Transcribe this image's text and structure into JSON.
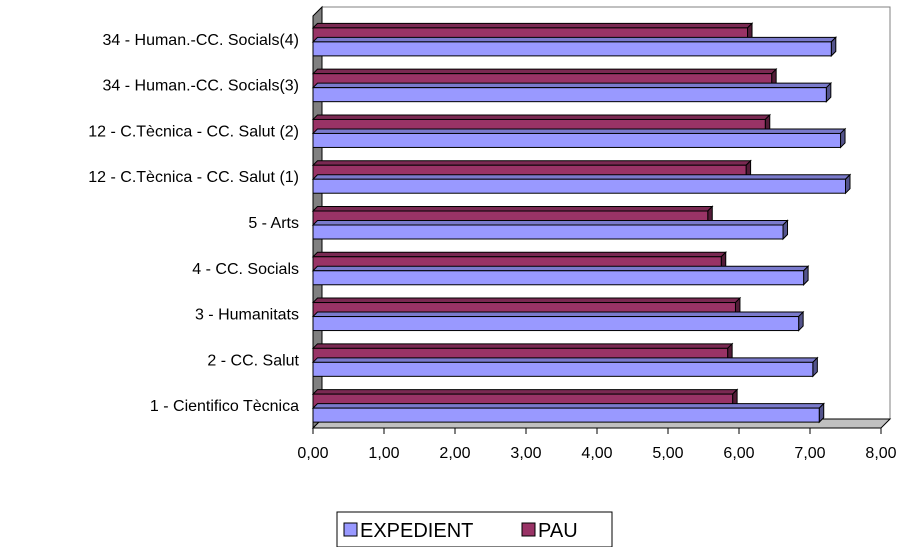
{
  "chart_data": {
    "type": "bar",
    "orientation": "horizontal",
    "style": "3d",
    "categories": [
      "1 - Cientifico Tècnica",
      "2 - CC. Salut",
      "3 - Humanitats",
      "4 - CC. Socials",
      "5 - Arts",
      "12 - C.Tècnica - CC. Salut (1)",
      "12 - C.Tècnica - CC. Salut (2)",
      "34 - Human.-CC. Socials(3)",
      "34 - Human.-CC. Socials(4)"
    ],
    "series": [
      {
        "name": "EXPEDIENT",
        "color": "#9999ff",
        "values": [
          7.13,
          7.04,
          6.84,
          6.91,
          6.62,
          7.5,
          7.43,
          7.23,
          7.3
        ]
      },
      {
        "name": "PAU",
        "color": "#993366",
        "values": [
          5.91,
          5.84,
          5.95,
          5.75,
          5.56,
          6.1,
          6.37,
          6.46,
          6.12
        ]
      }
    ],
    "xlim": [
      0,
      8
    ],
    "xticks": [
      "0,00",
      "1,00",
      "2,00",
      "3,00",
      "4,00",
      "5,00",
      "6,00",
      "7,00",
      "8,00"
    ],
    "grid": false,
    "legend_position": "bottom"
  }
}
